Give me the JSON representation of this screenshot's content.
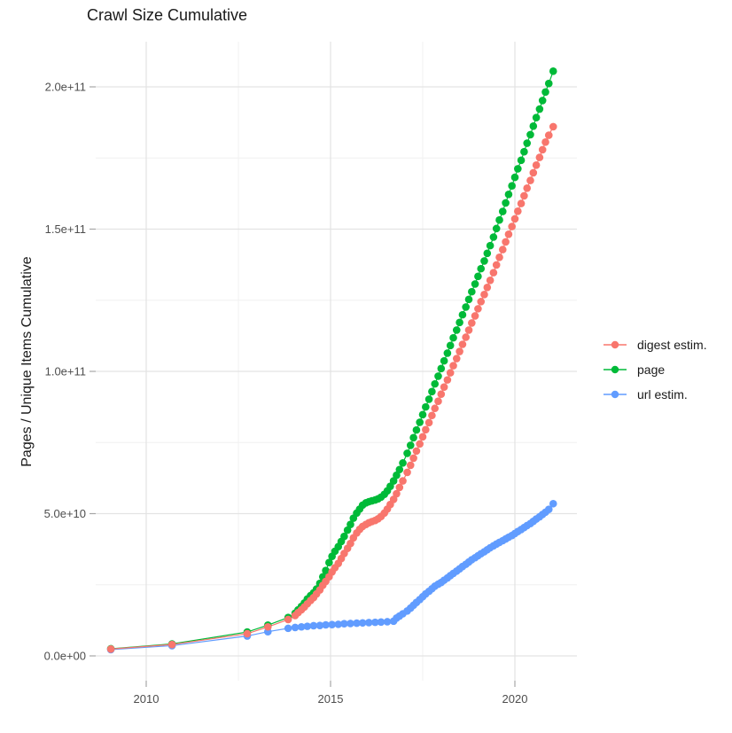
{
  "title": "Crawl Size Cumulative",
  "chart_data": {
    "type": "scatter",
    "title": "Crawl Size Cumulative",
    "xlabel": "",
    "ylabel": "Pages / Unique Items Cumulative",
    "legend_position": "right",
    "grid": "on",
    "value_scale_note": "series point values are in units of 1e10 (y tick 2.0e+11 = 20)",
    "x_axis": {
      "range": [
        2008.4,
        2021.7
      ],
      "ticks": [
        {
          "value": 2010,
          "label": "2010"
        },
        {
          "value": 2015,
          "label": "2015"
        },
        {
          "value": 2020,
          "label": "2020"
        }
      ],
      "minor": [
        2012.5,
        2017.5
      ]
    },
    "y_axis": {
      "range": [
        -0.9,
        21.6
      ],
      "ticks": [
        {
          "value": 0,
          "label": "0.0e+00"
        },
        {
          "value": 5,
          "label": "5.0e+10"
        },
        {
          "value": 10,
          "label": "1.0e+11"
        },
        {
          "value": 15,
          "label": "1.5e+11"
        },
        {
          "value": 20,
          "label": "2.0e+11"
        }
      ],
      "minor": [
        2.5,
        7.5,
        12.5,
        17.5
      ]
    },
    "series": [
      {
        "name": "digest estim.",
        "color": "#F8766D",
        "points": [
          [
            2009.04,
            0.24
          ],
          [
            2010.7,
            0.4
          ],
          [
            2012.74,
            0.78
          ],
          [
            2013.3,
            1.02
          ],
          [
            2013.85,
            1.28
          ],
          [
            2014.04,
            1.42
          ],
          [
            2014.12,
            1.52
          ],
          [
            2014.21,
            1.62
          ],
          [
            2014.29,
            1.72
          ],
          [
            2014.37,
            1.83
          ],
          [
            2014.46,
            1.95
          ],
          [
            2014.54,
            2.05
          ],
          [
            2014.62,
            2.18
          ],
          [
            2014.71,
            2.32
          ],
          [
            2014.79,
            2.48
          ],
          [
            2014.87,
            2.62
          ],
          [
            2014.96,
            2.78
          ],
          [
            2015.04,
            2.95
          ],
          [
            2015.12,
            3.1
          ],
          [
            2015.21,
            3.25
          ],
          [
            2015.29,
            3.42
          ],
          [
            2015.37,
            3.6
          ],
          [
            2015.46,
            3.78
          ],
          [
            2015.54,
            3.95
          ],
          [
            2015.62,
            4.15
          ],
          [
            2015.71,
            4.32
          ],
          [
            2015.79,
            4.45
          ],
          [
            2015.87,
            4.55
          ],
          [
            2015.96,
            4.62
          ],
          [
            2016.04,
            4.68
          ],
          [
            2016.12,
            4.72
          ],
          [
            2016.21,
            4.76
          ],
          [
            2016.29,
            4.82
          ],
          [
            2016.37,
            4.9
          ],
          [
            2016.46,
            5.02
          ],
          [
            2016.54,
            5.16
          ],
          [
            2016.62,
            5.32
          ],
          [
            2016.71,
            5.5
          ],
          [
            2016.79,
            5.7
          ],
          [
            2016.87,
            5.92
          ],
          [
            2016.96,
            6.15
          ],
          [
            2017.08,
            6.45
          ],
          [
            2017.17,
            6.7
          ],
          [
            2017.25,
            6.95
          ],
          [
            2017.33,
            7.2
          ],
          [
            2017.42,
            7.45
          ],
          [
            2017.5,
            7.7
          ],
          [
            2017.58,
            7.95
          ],
          [
            2017.67,
            8.2
          ],
          [
            2017.75,
            8.45
          ],
          [
            2017.83,
            8.7
          ],
          [
            2017.92,
            8.95
          ],
          [
            2018.0,
            9.2
          ],
          [
            2018.08,
            9.45
          ],
          [
            2018.17,
            9.7
          ],
          [
            2018.25,
            9.95
          ],
          [
            2018.33,
            10.2
          ],
          [
            2018.42,
            10.45
          ],
          [
            2018.5,
            10.7
          ],
          [
            2018.58,
            10.95
          ],
          [
            2018.67,
            11.2
          ],
          [
            2018.75,
            11.45
          ],
          [
            2018.83,
            11.7
          ],
          [
            2018.92,
            11.95
          ],
          [
            2019.0,
            12.2
          ],
          [
            2019.08,
            12.45
          ],
          [
            2019.17,
            12.7
          ],
          [
            2019.25,
            12.95
          ],
          [
            2019.33,
            13.2
          ],
          [
            2019.42,
            13.47
          ],
          [
            2019.5,
            13.74
          ],
          [
            2019.58,
            14.01
          ],
          [
            2019.67,
            14.28
          ],
          [
            2019.75,
            14.55
          ],
          [
            2019.83,
            14.82
          ],
          [
            2019.92,
            15.09
          ],
          [
            2020.0,
            15.36
          ],
          [
            2020.08,
            15.63
          ],
          [
            2020.17,
            15.9
          ],
          [
            2020.25,
            16.17
          ],
          [
            2020.33,
            16.44
          ],
          [
            2020.42,
            16.71
          ],
          [
            2020.5,
            16.98
          ],
          [
            2020.58,
            17.25
          ],
          [
            2020.67,
            17.52
          ],
          [
            2020.75,
            17.79
          ],
          [
            2020.83,
            18.06
          ],
          [
            2020.92,
            18.3
          ],
          [
            2021.04,
            18.6
          ]
        ]
      },
      {
        "name": "page",
        "color": "#00BA38",
        "points": [
          [
            2009.04,
            0.25
          ],
          [
            2010.7,
            0.42
          ],
          [
            2012.74,
            0.84
          ],
          [
            2013.3,
            1.08
          ],
          [
            2013.85,
            1.35
          ],
          [
            2014.04,
            1.5
          ],
          [
            2014.12,
            1.62
          ],
          [
            2014.21,
            1.74
          ],
          [
            2014.29,
            1.86
          ],
          [
            2014.37,
            2.0
          ],
          [
            2014.46,
            2.12
          ],
          [
            2014.54,
            2.22
          ],
          [
            2014.62,
            2.35
          ],
          [
            2014.71,
            2.55
          ],
          [
            2014.79,
            2.78
          ],
          [
            2014.87,
            3.0
          ],
          [
            2014.96,
            3.28
          ],
          [
            2015.04,
            3.5
          ],
          [
            2015.12,
            3.68
          ],
          [
            2015.21,
            3.84
          ],
          [
            2015.29,
            4.02
          ],
          [
            2015.37,
            4.2
          ],
          [
            2015.46,
            4.42
          ],
          [
            2015.54,
            4.62
          ],
          [
            2015.62,
            4.84
          ],
          [
            2015.71,
            5.02
          ],
          [
            2015.79,
            5.16
          ],
          [
            2015.87,
            5.3
          ],
          [
            2015.96,
            5.38
          ],
          [
            2016.04,
            5.42
          ],
          [
            2016.12,
            5.45
          ],
          [
            2016.21,
            5.48
          ],
          [
            2016.29,
            5.52
          ],
          [
            2016.37,
            5.58
          ],
          [
            2016.46,
            5.68
          ],
          [
            2016.54,
            5.8
          ],
          [
            2016.62,
            5.96
          ],
          [
            2016.71,
            6.15
          ],
          [
            2016.79,
            6.35
          ],
          [
            2016.87,
            6.55
          ],
          [
            2016.96,
            6.78
          ],
          [
            2017.08,
            7.12
          ],
          [
            2017.17,
            7.4
          ],
          [
            2017.25,
            7.67
          ],
          [
            2017.33,
            7.94
          ],
          [
            2017.42,
            8.21
          ],
          [
            2017.5,
            8.48
          ],
          [
            2017.58,
            8.75
          ],
          [
            2017.67,
            9.02
          ],
          [
            2017.75,
            9.29
          ],
          [
            2017.83,
            9.56
          ],
          [
            2017.92,
            9.83
          ],
          [
            2018.0,
            10.1
          ],
          [
            2018.08,
            10.37
          ],
          [
            2018.17,
            10.64
          ],
          [
            2018.25,
            10.91
          ],
          [
            2018.33,
            11.18
          ],
          [
            2018.42,
            11.45
          ],
          [
            2018.5,
            11.72
          ],
          [
            2018.58,
            11.99
          ],
          [
            2018.67,
            12.26
          ],
          [
            2018.75,
            12.53
          ],
          [
            2018.83,
            12.8
          ],
          [
            2018.92,
            13.07
          ],
          [
            2019.0,
            13.34
          ],
          [
            2019.08,
            13.61
          ],
          [
            2019.17,
            13.88
          ],
          [
            2019.25,
            14.15
          ],
          [
            2019.33,
            14.42
          ],
          [
            2019.42,
            14.72
          ],
          [
            2019.5,
            15.02
          ],
          [
            2019.58,
            15.32
          ],
          [
            2019.67,
            15.62
          ],
          [
            2019.75,
            15.92
          ],
          [
            2019.83,
            16.22
          ],
          [
            2019.92,
            16.52
          ],
          [
            2020.0,
            16.82
          ],
          [
            2020.08,
            17.12
          ],
          [
            2020.17,
            17.42
          ],
          [
            2020.25,
            17.72
          ],
          [
            2020.33,
            18.02
          ],
          [
            2020.42,
            18.32
          ],
          [
            2020.5,
            18.62
          ],
          [
            2020.58,
            18.92
          ],
          [
            2020.67,
            19.22
          ],
          [
            2020.75,
            19.52
          ],
          [
            2020.83,
            19.82
          ],
          [
            2020.92,
            20.12
          ],
          [
            2021.04,
            20.55
          ]
        ]
      },
      {
        "name": "url estim.",
        "color": "#619CFF",
        "points": [
          [
            2009.04,
            0.22
          ],
          [
            2010.7,
            0.36
          ],
          [
            2012.74,
            0.7
          ],
          [
            2013.3,
            0.85
          ],
          [
            2013.85,
            0.97
          ],
          [
            2014.04,
            1.0
          ],
          [
            2014.21,
            1.02
          ],
          [
            2014.37,
            1.04
          ],
          [
            2014.54,
            1.06
          ],
          [
            2014.71,
            1.07
          ],
          [
            2014.87,
            1.09
          ],
          [
            2015.04,
            1.1
          ],
          [
            2015.21,
            1.11
          ],
          [
            2015.37,
            1.13
          ],
          [
            2015.54,
            1.14
          ],
          [
            2015.71,
            1.15
          ],
          [
            2015.87,
            1.16
          ],
          [
            2016.04,
            1.17
          ],
          [
            2016.21,
            1.18
          ],
          [
            2016.37,
            1.19
          ],
          [
            2016.54,
            1.2
          ],
          [
            2016.71,
            1.22
          ],
          [
            2016.79,
            1.33
          ],
          [
            2016.87,
            1.4
          ],
          [
            2016.96,
            1.48
          ],
          [
            2017.08,
            1.58
          ],
          [
            2017.17,
            1.68
          ],
          [
            2017.25,
            1.78
          ],
          [
            2017.33,
            1.88
          ],
          [
            2017.42,
            1.98
          ],
          [
            2017.5,
            2.08
          ],
          [
            2017.58,
            2.18
          ],
          [
            2017.67,
            2.27
          ],
          [
            2017.75,
            2.36
          ],
          [
            2017.83,
            2.45
          ],
          [
            2017.92,
            2.52
          ],
          [
            2018.0,
            2.58
          ],
          [
            2018.08,
            2.66
          ],
          [
            2018.17,
            2.74
          ],
          [
            2018.25,
            2.82
          ],
          [
            2018.33,
            2.9
          ],
          [
            2018.42,
            2.98
          ],
          [
            2018.5,
            3.06
          ],
          [
            2018.58,
            3.14
          ],
          [
            2018.67,
            3.22
          ],
          [
            2018.75,
            3.3
          ],
          [
            2018.83,
            3.38
          ],
          [
            2018.92,
            3.45
          ],
          [
            2019.0,
            3.52
          ],
          [
            2019.08,
            3.59
          ],
          [
            2019.17,
            3.66
          ],
          [
            2019.25,
            3.73
          ],
          [
            2019.33,
            3.8
          ],
          [
            2019.42,
            3.87
          ],
          [
            2019.5,
            3.93
          ],
          [
            2019.58,
            3.99
          ],
          [
            2019.67,
            4.05
          ],
          [
            2019.75,
            4.11
          ],
          [
            2019.83,
            4.17
          ],
          [
            2019.92,
            4.23
          ],
          [
            2020.0,
            4.3
          ],
          [
            2020.08,
            4.37
          ],
          [
            2020.17,
            4.44
          ],
          [
            2020.25,
            4.51
          ],
          [
            2020.33,
            4.58
          ],
          [
            2020.42,
            4.65
          ],
          [
            2020.5,
            4.73
          ],
          [
            2020.58,
            4.81
          ],
          [
            2020.67,
            4.89
          ],
          [
            2020.75,
            4.97
          ],
          [
            2020.83,
            5.05
          ],
          [
            2020.92,
            5.15
          ],
          [
            2021.04,
            5.35
          ]
        ]
      }
    ]
  },
  "colors": {
    "grid_major": "#e3e3e3",
    "grid_minor": "#f0f0f0",
    "tick": "#a6a6a6",
    "tick_label": "#4d4d4d",
    "text": "#1a1a1a"
  }
}
